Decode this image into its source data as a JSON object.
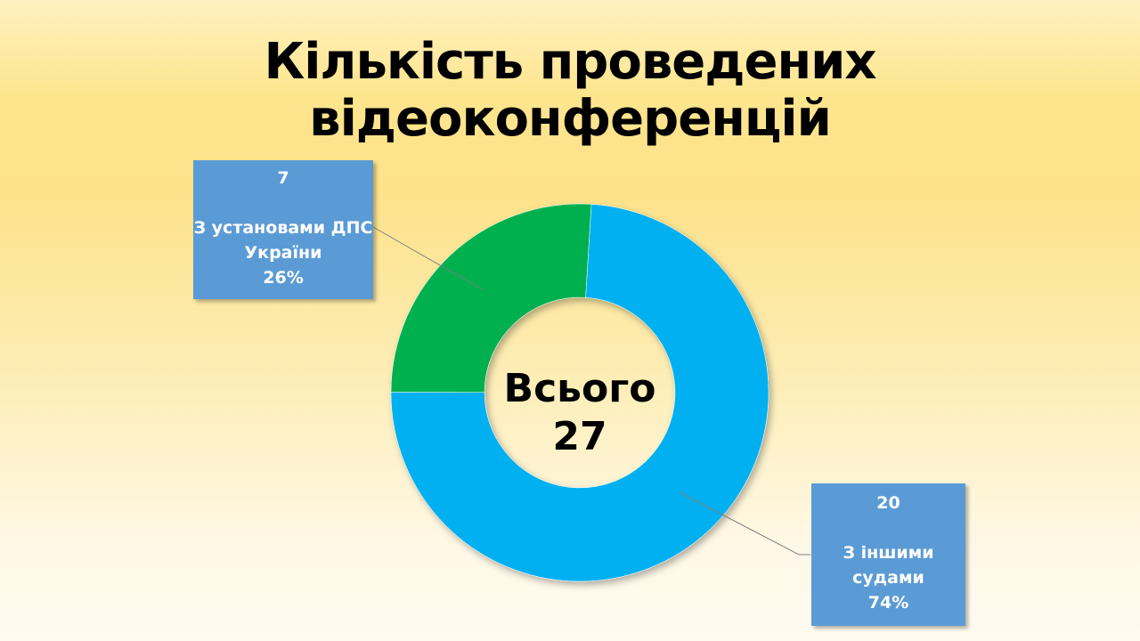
{
  "chart_data": {
    "type": "pie",
    "variant": "donut",
    "title": "Кількість проведених відеоконференцій",
    "categories": [
      "З іншими судами",
      "З установами ДПС України"
    ],
    "values": [
      20,
      7
    ],
    "percentages": [
      "74%",
      "26%"
    ],
    "colors": [
      "#00b0f0",
      "#00b050"
    ],
    "center_label": "Всього",
    "center_value": "27",
    "legend": "none"
  }
}
